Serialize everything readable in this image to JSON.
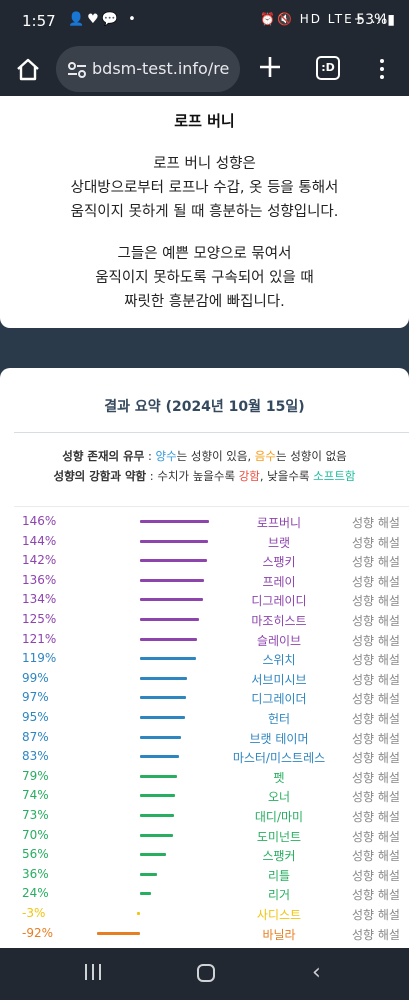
{
  "status_bar": {
    "time": "1:57",
    "left_icons": "👤♥💬 •",
    "right_icons": "⏰🔇 HD LTE+ .ıl",
    "battery": "53%▮"
  },
  "browser": {
    "url": "bdsm-test.info/re",
    "tabs_label": ":D"
  },
  "card": {
    "title": "로프 버니",
    "para1": [
      "로프 버니 성향은",
      "상대방으로부터 로프나 수갑, 옷 등을 통해서",
      "움직이지 못하게 될 때 흥분하는 성향입니다."
    ],
    "para2": [
      "그들은 예쁜 모양으로 묶여서",
      "움직이지 못하도록 구속되어 있을 때",
      "짜릿한 흥분감에 빠집니다."
    ]
  },
  "summary": {
    "title": "결과 요약 (2024년 10월 15일)",
    "legend1": {
      "label": "성향 존재의 유무",
      "sep": " : ",
      "positive": "양수",
      "positive_text": "는 성향이 있음, ",
      "negative": "음수",
      "negative_text": "는 성향이 없음"
    },
    "legend2": {
      "label": "성향의 강함과 약함",
      "sep": " : 수치가 높을수록 ",
      "strong": "강함",
      "mid": ", 낮을수록 ",
      "soft": "소프트함"
    },
    "link_label": "성향 해설",
    "colors": {
      "purple": "#8e44ad",
      "blue": "#2e86c1",
      "green": "#27ae60",
      "yellow": "#f1c40f",
      "orange": "#e67e22"
    }
  },
  "chart_data": {
    "type": "bar",
    "categories": [
      "로프버니",
      "브랫",
      "스팽키",
      "프레이",
      "디그레이디",
      "마조히스트",
      "슬레이브",
      "스위치",
      "서브미시브",
      "디그레이더",
      "헌터",
      "브랫 테이머",
      "마스터/미스트레스",
      "펫",
      "오너",
      "대디/마미",
      "도미넌트",
      "스팽커",
      "리틀",
      "리거",
      "사디스트",
      "바닐라"
    ],
    "values": [
      146,
      144,
      142,
      136,
      134,
      125,
      121,
      119,
      99,
      97,
      95,
      87,
      83,
      79,
      74,
      73,
      70,
      56,
      36,
      24,
      -3,
      -92
    ],
    "labels": [
      "146%",
      "144%",
      "142%",
      "136%",
      "134%",
      "125%",
      "121%",
      "119%",
      "99%",
      "97%",
      "95%",
      "87%",
      "83%",
      "79%",
      "74%",
      "73%",
      "70%",
      "56%",
      "36%",
      "24%",
      "-3%",
      "-92%"
    ],
    "groups": [
      "purple",
      "purple",
      "purple",
      "purple",
      "purple",
      "purple",
      "purple",
      "blue",
      "blue",
      "blue",
      "blue",
      "blue",
      "blue",
      "green",
      "green",
      "green",
      "green",
      "green",
      "green",
      "green",
      "yellow",
      "orange"
    ],
    "xlim": [
      -100,
      150
    ]
  },
  "nav_bar": {
    "back": "‹"
  }
}
